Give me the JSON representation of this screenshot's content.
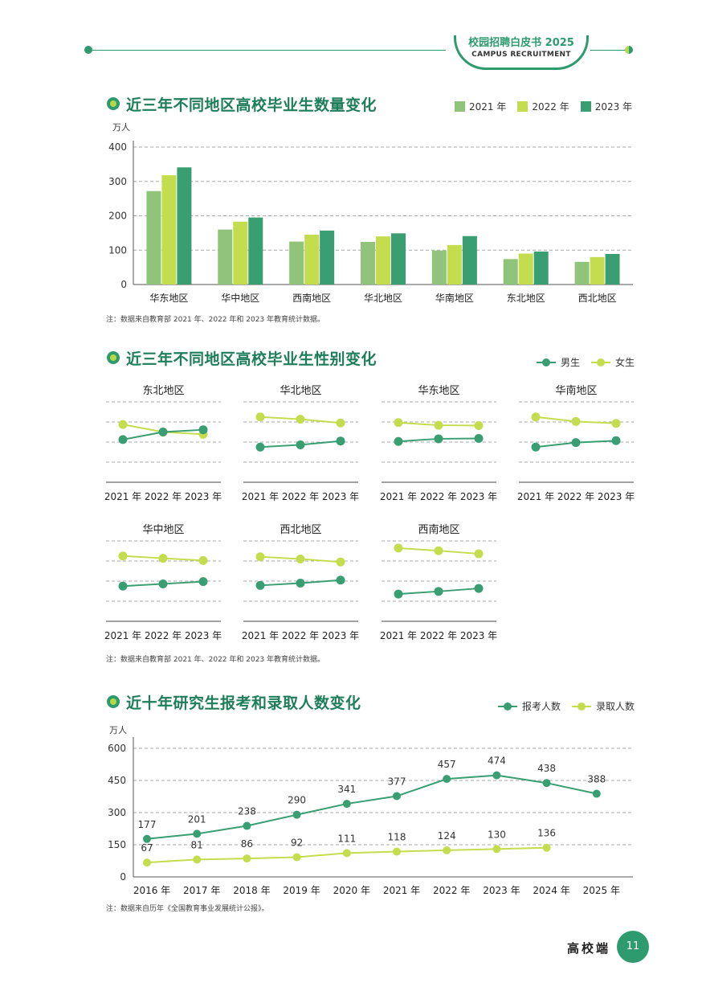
{
  "header": {
    "title": "校园招聘白皮书 2025",
    "subtitle": "CAMPUS RECRUITMENT"
  },
  "colors": {
    "c2021": "#8fc47a",
    "c2022": "#c4dd4e",
    "c2023": "#3a9e73",
    "male": "#3a9e73",
    "female": "#c4dd4e"
  },
  "section1": {
    "title": "近三年不同地区高校毕业生数量变化",
    "note": "注：数据来自教育部 2021 年、2022 年和 2023 年教育统计数据。",
    "chart_data": {
      "type": "bar",
      "ylabel": "万人",
      "ylim": [
        0,
        400
      ],
      "yticks": [
        "0",
        "100",
        "200",
        "300",
        "400"
      ],
      "categories": [
        "华东地区",
        "华中地区",
        "西南地区",
        "华北地区",
        "华南地区",
        "东北地区",
        "西北地区"
      ],
      "series": [
        {
          "name": "2021 年",
          "values": [
            272,
            160,
            125,
            124,
            99,
            74,
            66
          ]
        },
        {
          "name": "2022 年",
          "values": [
            318,
            183,
            145,
            140,
            115,
            90,
            80
          ]
        },
        {
          "name": "2023 年",
          "values": [
            341,
            195,
            157,
            149,
            141,
            96,
            89
          ]
        }
      ]
    }
  },
  "section2": {
    "title": "近三年不同地区高校毕业生性别变化",
    "note": "注：数据来自教育部 2021 年、2022 年和 2023 年教育统计数据。",
    "legend": [
      "男生",
      "女生"
    ],
    "years": [
      "2021 年",
      "2022 年",
      "2023 年"
    ],
    "chart_data": [
      {
        "type": "line",
        "title": "东北地区",
        "series": [
          {
            "name": "男生",
            "values": [
              48.0,
              50.0,
              50.6
            ]
          },
          {
            "name": "女生",
            "values": [
              52.0,
              50.0,
              49.4
            ]
          }
        ]
      },
      {
        "type": "line",
        "title": "华北地区",
        "series": [
          {
            "name": "男生",
            "values": [
              46.0,
              46.6,
              47.6
            ]
          },
          {
            "name": "女生",
            "values": [
              54.0,
              53.4,
              52.4
            ]
          }
        ]
      },
      {
        "type": "line",
        "title": "华东地区",
        "series": [
          {
            "name": "男生",
            "values": [
              47.5,
              48.2,
              48.3
            ]
          },
          {
            "name": "女生",
            "values": [
              52.5,
              51.8,
              51.7
            ]
          }
        ]
      },
      {
        "type": "line",
        "title": "华南地区",
        "series": [
          {
            "name": "男生",
            "values": [
              46.0,
              47.2,
              47.7
            ]
          },
          {
            "name": "女生",
            "values": [
              54.0,
              52.8,
              52.3
            ]
          }
        ]
      },
      {
        "type": "line",
        "title": "华中地区",
        "series": [
          {
            "name": "男生",
            "values": [
              46.0,
              46.6,
              47.2
            ]
          },
          {
            "name": "女生",
            "values": [
              54.0,
              53.4,
              52.8
            ]
          }
        ]
      },
      {
        "type": "line",
        "title": "西北地区",
        "series": [
          {
            "name": "男生",
            "values": [
              46.2,
              46.8,
              47.6
            ]
          },
          {
            "name": "女生",
            "values": [
              53.8,
              53.2,
              52.4
            ]
          }
        ]
      },
      {
        "type": "line",
        "title": "西南地区",
        "series": [
          {
            "name": "男生",
            "values": [
              43.9,
              44.6,
              45.4
            ]
          },
          {
            "name": "女生",
            "values": [
              56.1,
              55.4,
              54.6
            ]
          }
        ]
      }
    ]
  },
  "section3": {
    "title": "近十年研究生报考和录取人数变化",
    "note": "注：数据来自历年《全国教育事业发展统计公报》。",
    "chart_data": {
      "type": "line",
      "ylabel": "万人",
      "ylim": [
        0,
        600
      ],
      "yticks": [
        "0",
        "150",
        "300",
        "450",
        "600"
      ],
      "x": [
        "2016 年",
        "2017 年",
        "2018 年",
        "2019 年",
        "2020 年",
        "2021 年",
        "2022 年",
        "2023 年",
        "2024 年",
        "2025 年"
      ],
      "series": [
        {
          "name": "报考人数",
          "values": [
            177,
            201,
            238,
            290,
            341,
            377,
            457,
            474,
            438,
            388
          ]
        },
        {
          "name": "录取人数",
          "values": [
            67,
            81,
            86,
            92,
            111,
            118,
            124,
            130,
            136,
            null
          ]
        }
      ]
    }
  },
  "footer": {
    "label": "高校端",
    "page": "11"
  }
}
